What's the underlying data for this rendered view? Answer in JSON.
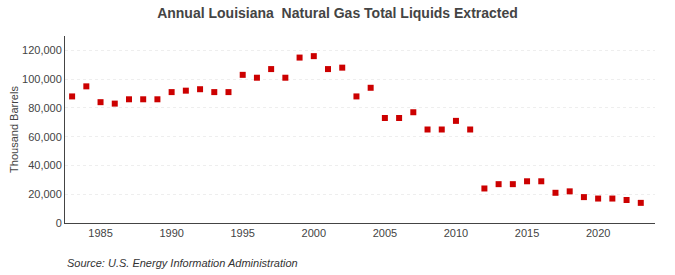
{
  "chart_data": {
    "type": "scatter",
    "title": "Annual Louisiana  Natural Gas Total Liquids Extracted",
    "ylabel": "Thousand Barrels",
    "annotations": [
      "Source: U.S. Energy Information Administration"
    ],
    "x": [
      1983,
      1984,
      1985,
      1986,
      1987,
      1988,
      1989,
      1990,
      1991,
      1992,
      1993,
      1994,
      1995,
      1996,
      1997,
      1998,
      1999,
      2000,
      2001,
      2002,
      2003,
      2004,
      2005,
      2006,
      2007,
      2008,
      2009,
      2010,
      2011,
      2012,
      2013,
      2014,
      2015,
      2016,
      2017,
      2018,
      2019,
      2020,
      2021,
      2022,
      2023
    ],
    "values": [
      88000,
      95000,
      84000,
      83000,
      86000,
      86000,
      86000,
      91000,
      92000,
      93000,
      91000,
      91000,
      103000,
      101000,
      107000,
      101000,
      115000,
      116000,
      107000,
      108000,
      88000,
      94000,
      73000,
      73000,
      77000,
      65000,
      65000,
      71000,
      65000,
      24000,
      27000,
      27000,
      29000,
      29000,
      21000,
      22000,
      18000,
      17000,
      17000,
      16000,
      14000
    ],
    "color": "#cc0000",
    "marker": "square",
    "xlim": [
      1982.5,
      2024
    ],
    "xticks": [
      1985,
      1990,
      1995,
      2000,
      2005,
      2010,
      2015,
      2020
    ],
    "ylim": [
      0,
      130000
    ],
    "yticks": [
      0,
      {
        "value": 20000,
        "label": "20,000"
      },
      {
        "value": 40000,
        "label": "40,000"
      },
      {
        "value": 60000,
        "label": "60,000"
      },
      {
        "value": 80000,
        "label": "80,000"
      },
      {
        "value": 100000,
        "label": "100,000"
      },
      {
        "value": 120000,
        "label": "120,000"
      }
    ],
    "grid": "y"
  }
}
